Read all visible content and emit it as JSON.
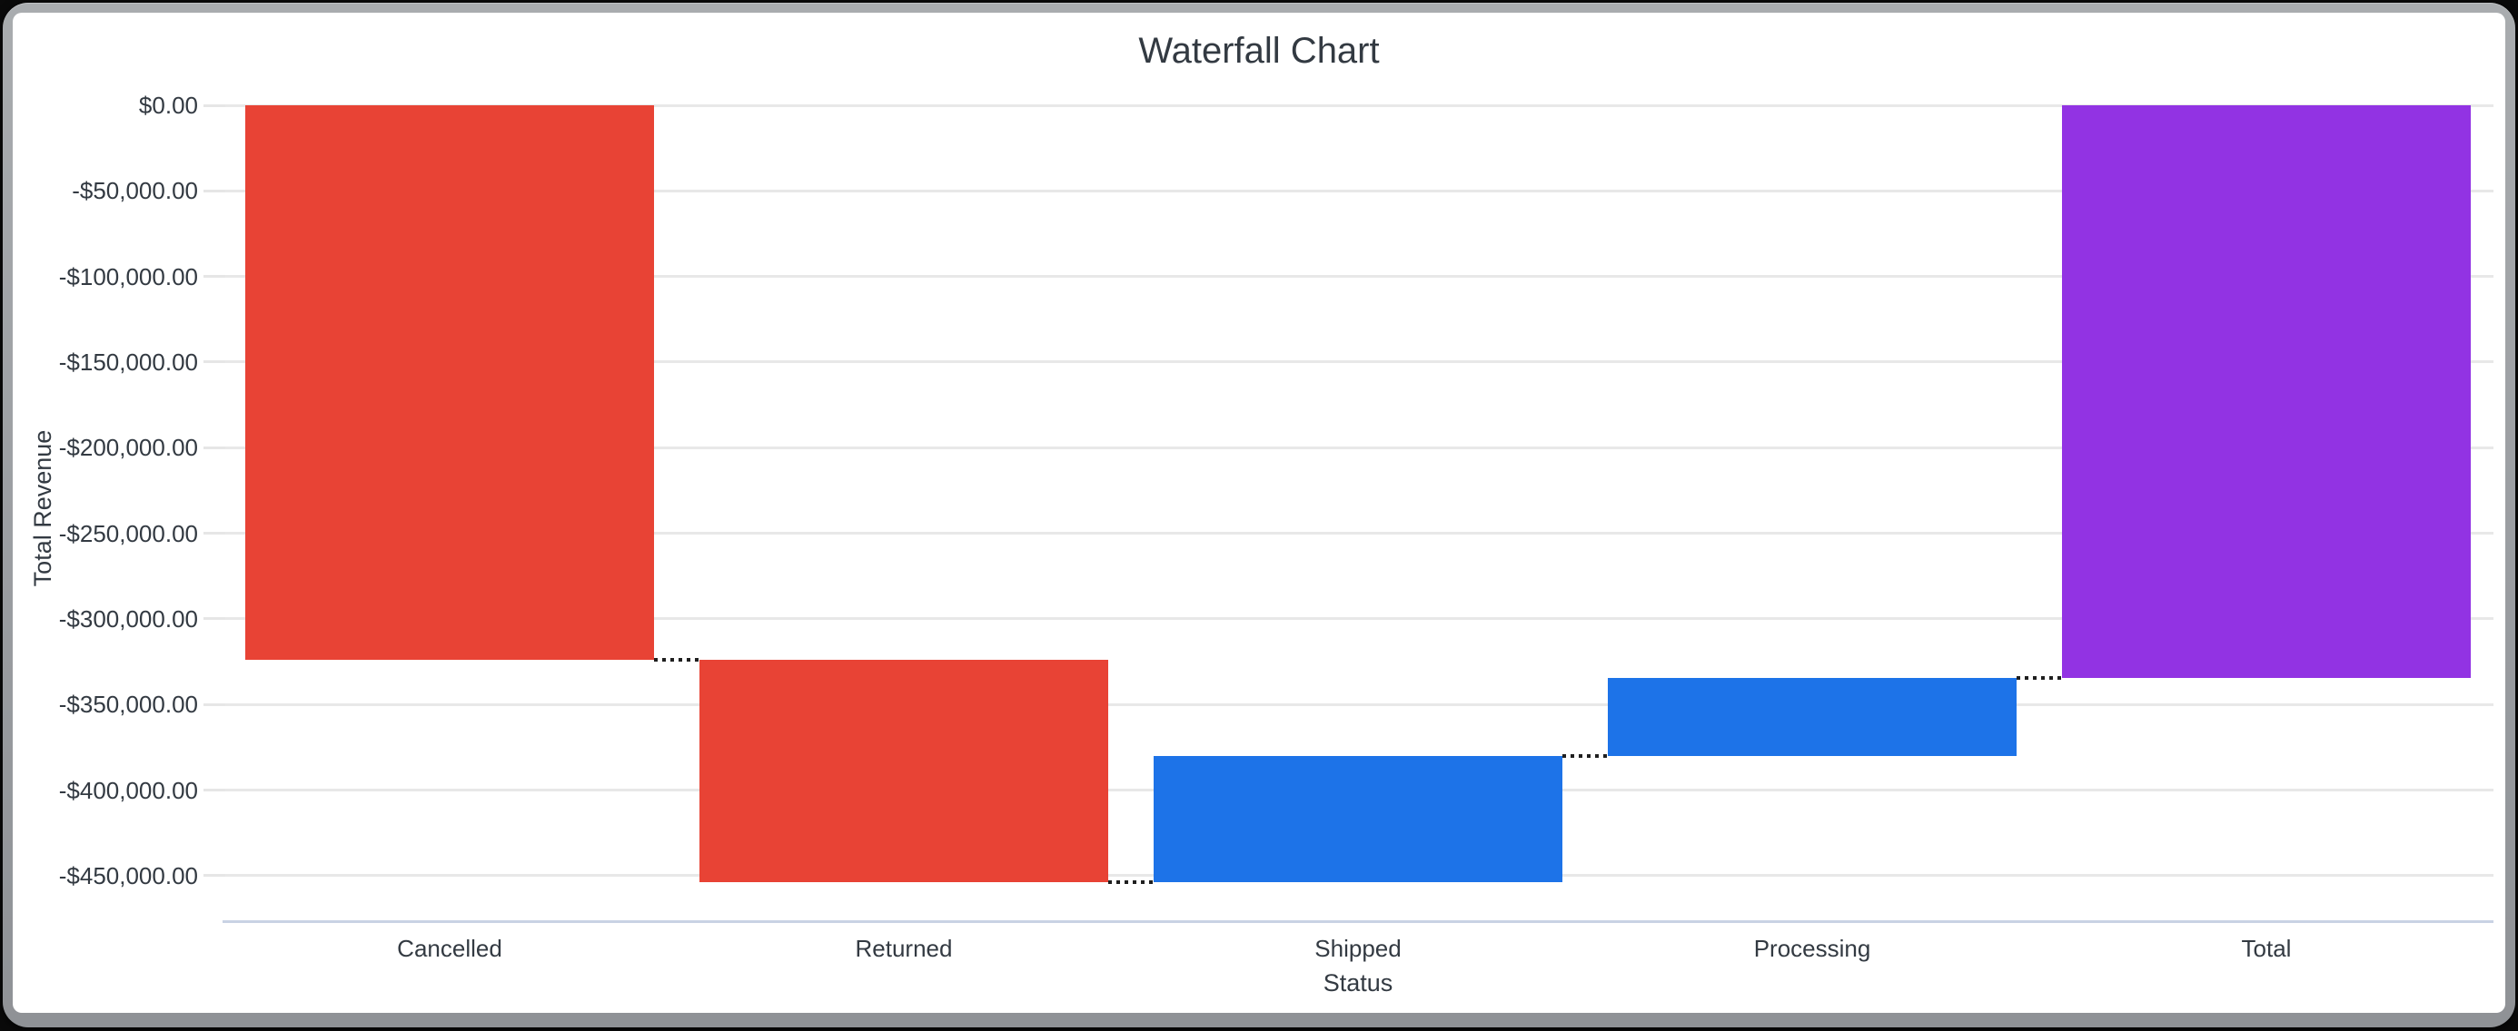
{
  "window": {
    "frame_color": "#9a9da1",
    "background_color": "#ffffff"
  },
  "chart_data": {
    "type": "bar",
    "variant": "waterfall",
    "title": "Waterfall Chart",
    "xlabel": "Status",
    "ylabel": "Total Revenue",
    "grid": true,
    "legend": "none",
    "categories": [
      "Cancelled",
      "Returned",
      "Shipped",
      "Processing",
      "Total"
    ],
    "bars": [
      {
        "label": "Cancelled",
        "kind": "decrease",
        "start": 0,
        "end": -323900,
        "delta": -323900
      },
      {
        "label": "Returned",
        "kind": "decrease",
        "start": -323900,
        "end": -453700,
        "delta": -129800
      },
      {
        "label": "Shipped",
        "kind": "increase",
        "start": -453700,
        "end": -380000,
        "delta": 73700
      },
      {
        "label": "Processing",
        "kind": "increase",
        "start": -380000,
        "end": -334400,
        "delta": 45600
      },
      {
        "label": "Total",
        "kind": "total",
        "start": 0,
        "end": -334400,
        "delta": -334400
      }
    ],
    "colors": {
      "decrease": "#e84335",
      "increase": "#1d73e8",
      "total": "#9233e3"
    },
    "connector": {
      "style": "dotted",
      "color": "#1f1f1f"
    },
    "y_axis": {
      "min": -477000,
      "max": 0,
      "tick_step": 50000,
      "ticks": [
        {
          "value": 0,
          "label": "$0.00"
        },
        {
          "value": -50000,
          "label": "-$50,000.00"
        },
        {
          "value": -100000,
          "label": "-$100,000.00"
        },
        {
          "value": -150000,
          "label": "-$150,000.00"
        },
        {
          "value": -200000,
          "label": "-$200,000.00"
        },
        {
          "value": -250000,
          "label": "-$250,000.00"
        },
        {
          "value": -300000,
          "label": "-$300,000.00"
        },
        {
          "value": -350000,
          "label": "-$350,000.00"
        },
        {
          "value": -400000,
          "label": "-$400,000.00"
        },
        {
          "value": -450000,
          "label": "-$450,000.00"
        }
      ]
    }
  }
}
